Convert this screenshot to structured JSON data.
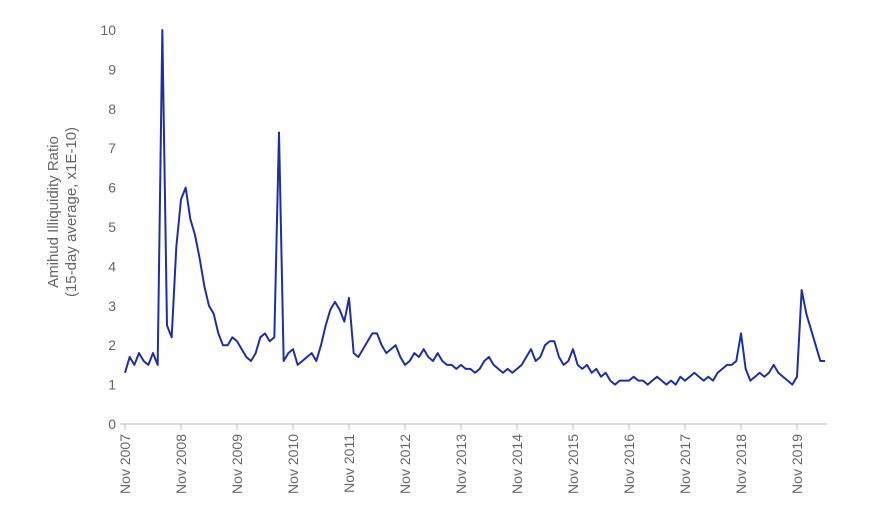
{
  "chart_data": {
    "type": "line",
    "ylabel": [
      "Amihud Illiquidity Ratio",
      "(15-day average, x1E-10)"
    ],
    "categories": [
      "Nov 2007",
      null,
      null,
      null,
      null,
      null,
      null,
      null,
      null,
      null,
      null,
      null,
      "Nov 2008",
      null,
      null,
      null,
      null,
      null,
      null,
      null,
      null,
      null,
      null,
      null,
      "Nov 2009",
      null,
      null,
      null,
      null,
      null,
      null,
      null,
      null,
      null,
      null,
      null,
      "Nov 2010",
      null,
      null,
      null,
      null,
      null,
      null,
      null,
      null,
      null,
      null,
      null,
      "Nov 2011",
      null,
      null,
      null,
      null,
      null,
      null,
      null,
      null,
      null,
      null,
      null,
      "Nov 2012",
      null,
      null,
      null,
      null,
      null,
      null,
      null,
      null,
      null,
      null,
      null,
      "Nov 2013",
      null,
      null,
      null,
      null,
      null,
      null,
      null,
      null,
      null,
      null,
      null,
      "Nov 2014",
      null,
      null,
      null,
      null,
      null,
      null,
      null,
      null,
      null,
      null,
      null,
      "Nov 2015",
      null,
      null,
      null,
      null,
      null,
      null,
      null,
      null,
      null,
      null,
      null,
      "Nov 2016",
      null,
      null,
      null,
      null,
      null,
      null,
      null,
      null,
      null,
      null,
      null,
      "Nov 2017",
      null,
      null,
      null,
      null,
      null,
      null,
      null,
      null,
      null,
      null,
      null,
      "Nov 2018",
      null,
      null,
      null,
      null,
      null,
      null,
      null,
      null,
      null,
      null,
      null,
      "Nov 2019",
      null,
      null,
      null,
      null,
      null,
      null
    ],
    "values": [
      1.3,
      1.7,
      1.5,
      1.8,
      1.6,
      1.5,
      1.8,
      1.5,
      10,
      2.5,
      2.2,
      4.5,
      5.7,
      6.0,
      5.2,
      4.8,
      4.2,
      3.5,
      3.0,
      2.8,
      2.3,
      2.0,
      2.0,
      2.2,
      2.1,
      1.9,
      1.7,
      1.6,
      1.8,
      2.2,
      2.3,
      2.1,
      2.2,
      7.4,
      1.6,
      1.8,
      1.9,
      1.5,
      1.6,
      1.7,
      1.8,
      1.6,
      2.0,
      2.5,
      2.9,
      3.1,
      2.9,
      2.6,
      3.2,
      1.8,
      1.7,
      1.9,
      2.1,
      2.3,
      2.3,
      2.0,
      1.8,
      1.9,
      2.0,
      1.7,
      1.5,
      1.6,
      1.8,
      1.7,
      1.9,
      1.7,
      1.6,
      1.8,
      1.6,
      1.5,
      1.5,
      1.4,
      1.5,
      1.4,
      1.4,
      1.3,
      1.4,
      1.6,
      1.7,
      1.5,
      1.4,
      1.3,
      1.4,
      1.3,
      1.4,
      1.5,
      1.7,
      1.9,
      1.6,
      1.7,
      2.0,
      2.1,
      2.1,
      1.7,
      1.5,
      1.6,
      1.9,
      1.5,
      1.4,
      1.5,
      1.3,
      1.4,
      1.2,
      1.3,
      1.1,
      1.0,
      1.1,
      1.1,
      1.1,
      1.2,
      1.1,
      1.1,
      1.0,
      1.1,
      1.2,
      1.1,
      1.0,
      1.1,
      1.0,
      1.2,
      1.1,
      1.2,
      1.3,
      1.2,
      1.1,
      1.2,
      1.1,
      1.3,
      1.4,
      1.5,
      1.5,
      1.6,
      2.3,
      1.4,
      1.1,
      1.2,
      1.3,
      1.2,
      1.3,
      1.5,
      1.3,
      1.2,
      1.1,
      1.0,
      1.2,
      3.4,
      2.8,
      2.4,
      2.0,
      1.6,
      1.6
    ],
    "color": "#1f2f9e",
    "ylim": [
      0,
      10
    ],
    "yticks": [
      0,
      1,
      2,
      3,
      4,
      5,
      6,
      7,
      8,
      9,
      10
    ],
    "grid": false
  }
}
